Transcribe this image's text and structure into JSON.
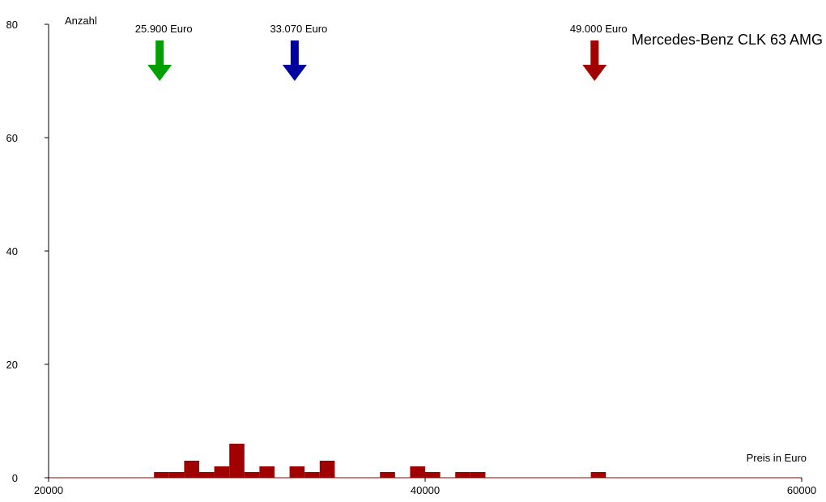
{
  "chart_data": {
    "type": "bar",
    "title": "Mercedes-Benz CLK 63 AMG",
    "xlabel": "Preis in Euro",
    "ylabel": "Anzahl",
    "xlim": [
      20000,
      60000
    ],
    "ylim": [
      0,
      80
    ],
    "x_ticks": [
      20000,
      40000,
      60000
    ],
    "y_ticks": [
      0,
      20,
      40,
      60,
      80
    ],
    "bin_width": 800,
    "bar_color": "#a00000",
    "axis_line_color": "#8b0000",
    "bins": [
      {
        "x": 25600,
        "count": 1
      },
      {
        "x": 26400,
        "count": 1
      },
      {
        "x": 27200,
        "count": 3
      },
      {
        "x": 28000,
        "count": 1
      },
      {
        "x": 28800,
        "count": 2
      },
      {
        "x": 29600,
        "count": 6
      },
      {
        "x": 30400,
        "count": 1
      },
      {
        "x": 31200,
        "count": 2
      },
      {
        "x": 32800,
        "count": 2
      },
      {
        "x": 33600,
        "count": 1
      },
      {
        "x": 34400,
        "count": 3
      },
      {
        "x": 37600,
        "count": 1
      },
      {
        "x": 39200,
        "count": 2
      },
      {
        "x": 40000,
        "count": 1
      },
      {
        "x": 41600,
        "count": 1
      },
      {
        "x": 42400,
        "count": 1
      },
      {
        "x": 48800,
        "count": 1
      }
    ],
    "markers": [
      {
        "value": 25900,
        "label": "25.900 Euro",
        "color": "#00a000"
      },
      {
        "value": 33070,
        "label": "33.070 Euro",
        "color": "#0000a0"
      },
      {
        "value": 49000,
        "label": "49.000 Euro",
        "color": "#a00000"
      }
    ]
  }
}
